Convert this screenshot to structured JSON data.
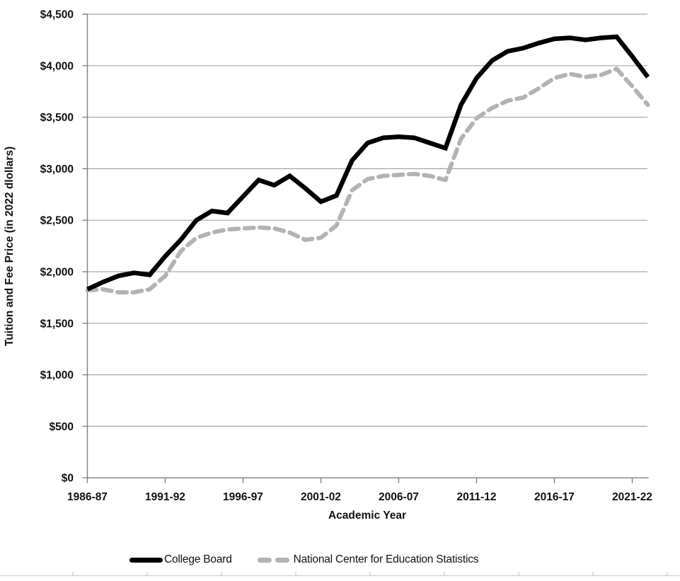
{
  "chart_data": {
    "type": "line",
    "title": "",
    "xlabel": "Academic Year",
    "ylabel": "Tuition and Fee Price (in 2022 dlollars)",
    "x_categories": [
      "1986-87",
      "1987-88",
      "1988-89",
      "1989-90",
      "1990-91",
      "1991-92",
      "1992-93",
      "1993-94",
      "1994-95",
      "1995-96",
      "1996-97",
      "1997-98",
      "1998-99",
      "1999-00",
      "2000-01",
      "2001-02",
      "2002-03",
      "2003-04",
      "2004-05",
      "2005-06",
      "2006-07",
      "2007-08",
      "2008-09",
      "2009-10",
      "2010-11",
      "2011-12",
      "2012-13",
      "2013-14",
      "2014-15",
      "2015-16",
      "2016-17",
      "2017-18",
      "2018-19",
      "2019-20",
      "2020-21",
      "2021-22",
      "2022-23"
    ],
    "x_tick_indices": [
      0,
      5,
      10,
      15,
      20,
      25,
      30,
      35
    ],
    "x_tick_labels": [
      "1986-87",
      "1991-92",
      "1996-97",
      "2001-02",
      "2006-07",
      "2011-12",
      "2016-17",
      "2021-22"
    ],
    "y_ticks": [
      0,
      500,
      1000,
      1500,
      2000,
      2500,
      3000,
      3500,
      4000,
      4500
    ],
    "y_tick_labels": [
      "$0",
      "$500",
      "$1,000",
      "$1,500",
      "$2,000",
      "$2,500",
      "$3,000",
      "$3,500",
      "$4,000",
      "$4,500"
    ],
    "ylim": [
      0,
      4500
    ],
    "grid": "horizontal",
    "legend_position": "bottom",
    "series": [
      {
        "name": "College Board",
        "style": "solid",
        "color": "#000000",
        "values": [
          1830,
          1900,
          1960,
          1990,
          1970,
          2150,
          2310,
          2500,
          2590,
          2570,
          2730,
          2890,
          2840,
          2930,
          2810,
          2680,
          2740,
          3080,
          3250,
          3300,
          3310,
          3300,
          3250,
          3200,
          3620,
          3880,
          4050,
          4140,
          4170,
          4220,
          4260,
          4270,
          4250,
          4270,
          4280,
          4090,
          3890
        ]
      },
      {
        "name": "National Center for Education Statistics",
        "style": "dashed",
        "color": "#b3b3b3",
        "values": [
          1820,
          1830,
          1800,
          1800,
          1830,
          1960,
          2200,
          2330,
          2380,
          2410,
          2420,
          2430,
          2420,
          2380,
          2310,
          2330,
          2450,
          2790,
          2900,
          2930,
          2940,
          2950,
          2930,
          2890,
          3290,
          3490,
          3590,
          3660,
          3690,
          3780,
          3880,
          3920,
          3890,
          3910,
          3970,
          3800,
          3620
        ]
      }
    ],
    "colors": {
      "axis_line": "#7f7f7f",
      "gridline": "#a6a6a6",
      "tick_label": "#111111",
      "bottom_ruler": "#cccccc"
    }
  }
}
